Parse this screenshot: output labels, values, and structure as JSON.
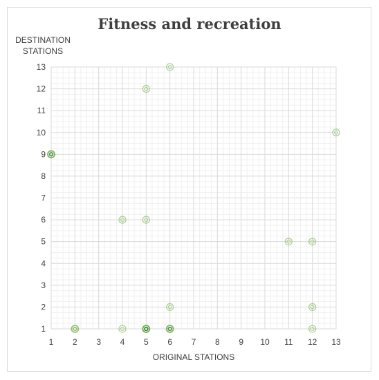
{
  "chart_data": {
    "type": "scatter",
    "title": "Fitness and recreation",
    "xlabel": "ORIGINAL STATIONS",
    "ylabel_lines": [
      "DESTINATION",
      "STATIONS"
    ],
    "xlim": [
      1,
      13
    ],
    "ylim": [
      1,
      13
    ],
    "xticks": [
      1,
      2,
      3,
      4,
      5,
      6,
      7,
      8,
      9,
      10,
      11,
      12,
      13
    ],
    "yticks": [
      1,
      2,
      3,
      4,
      5,
      6,
      7,
      8,
      9,
      10,
      11,
      12,
      13
    ],
    "grid": true,
    "minor_grid": true,
    "marker": "double-ring",
    "color": "#70ad47",
    "points": [
      {
        "x": 1,
        "y": 9,
        "count": 3
      },
      {
        "x": 2,
        "y": 1,
        "count": 2
      },
      {
        "x": 4,
        "y": 1,
        "count": 1
      },
      {
        "x": 4,
        "y": 6,
        "count": 1
      },
      {
        "x": 5,
        "y": 1,
        "count": 4
      },
      {
        "x": 5,
        "y": 6,
        "count": 1
      },
      {
        "x": 5,
        "y": 12,
        "count": 1
      },
      {
        "x": 6,
        "y": 1,
        "count": 3
      },
      {
        "x": 6,
        "y": 2,
        "count": 1
      },
      {
        "x": 6,
        "y": 13,
        "count": 1
      },
      {
        "x": 11,
        "y": 5,
        "count": 1
      },
      {
        "x": 12,
        "y": 1,
        "count": 1
      },
      {
        "x": 12,
        "y": 2,
        "count": 1
      },
      {
        "x": 12,
        "y": 5,
        "count": 1
      },
      {
        "x": 13,
        "y": 10,
        "count": 1
      }
    ]
  }
}
